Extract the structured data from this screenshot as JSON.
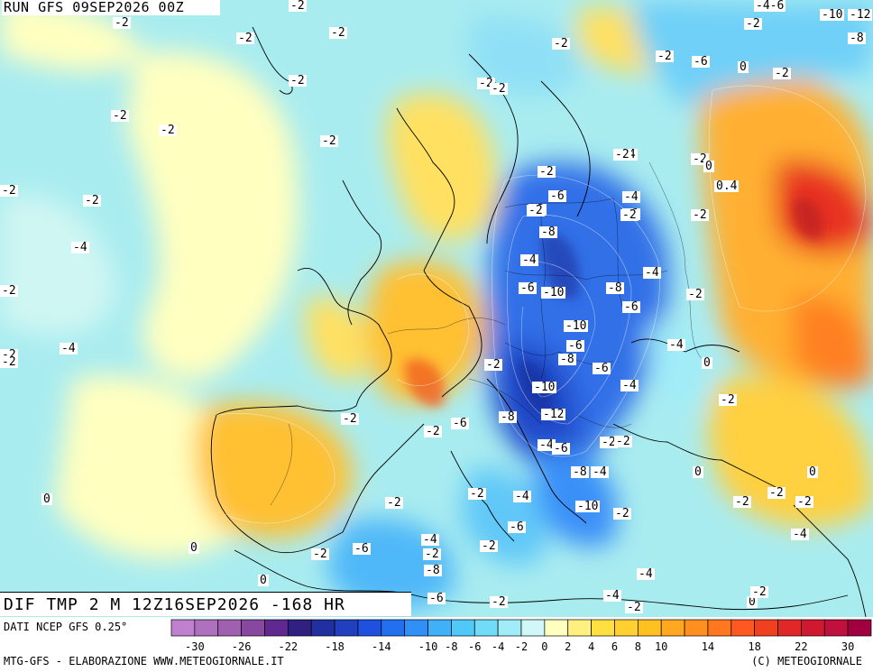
{
  "header": {
    "run": "RUN GFS 09SEP2026 00Z"
  },
  "title": "DIF TMP 2 M 12Z16SEP2026 -168 HR",
  "footer": {
    "data_source": "DATI NCEP GFS 0.25°",
    "credit_left": "MTG-GFS - ELABORAZIONE WWW.METEOGIORNALE.IT",
    "credit_right": "(C) METEOGIORNALE"
  },
  "colorbar": {
    "colors": [
      "#c080d0",
      "#b070c0",
      "#a060b0",
      "#8848a0",
      "#602890",
      "#302080",
      "#2030a0",
      "#2040c0",
      "#2050e0",
      "#2070f0",
      "#3090f8",
      "#40b0f8",
      "#50c8f8",
      "#70dcf8",
      "#a0ecf8",
      "#d0f8f8",
      "#ffffc0",
      "#fff080",
      "#ffe040",
      "#ffd030",
      "#ffc020",
      "#ffa820",
      "#ff9020",
      "#ff7820",
      "#ff5820",
      "#f04020",
      "#e02828",
      "#d01830",
      "#c01040",
      "#a00040"
    ],
    "ticks": [
      "-30",
      "-26",
      "-22",
      "-18",
      "-14",
      "-10",
      "-8",
      "-6",
      "-4",
      "-2",
      "0",
      "2",
      "4",
      "6",
      "8",
      "10",
      "14",
      "18",
      "22",
      "30"
    ]
  },
  "value_labels": [
    {
      "t": "-2"
    },
    {
      "t": "-2"
    },
    {
      "t": "-2"
    },
    {
      "t": "-2"
    },
    {
      "t": "-2"
    },
    {
      "t": "-2"
    },
    {
      "t": "-2"
    },
    {
      "t": "-2"
    },
    {
      "t": "-4"
    },
    {
      "t": "-4"
    },
    {
      "t": "-4-6"
    },
    {
      "t": "-10"
    },
    {
      "t": "-12"
    },
    {
      "t": "-8"
    },
    {
      "t": "-2"
    },
    {
      "t": "-2"
    },
    {
      "t": "-2"
    },
    {
      "t": "-6"
    },
    {
      "t": "0"
    },
    {
      "t": "-2"
    },
    {
      "t": "-2"
    },
    {
      "t": "-2"
    },
    {
      "t": "-2"
    },
    {
      "t": "-2"
    },
    {
      "t": "-2"
    },
    {
      "t": "-2"
    },
    {
      "t": "0"
    },
    {
      "t": "-4"
    },
    {
      "t": "-2"
    },
    {
      "t": "-2"
    },
    {
      "t": "0.4"
    },
    {
      "t": "-2"
    },
    {
      "t": "-6"
    },
    {
      "t": "-2"
    },
    {
      "t": "-4"
    },
    {
      "t": "-6"
    },
    {
      "t": "-2"
    },
    {
      "t": "-2"
    },
    {
      "t": "-8"
    },
    {
      "t": "-2"
    },
    {
      "t": "-2"
    },
    {
      "t": "-4"
    },
    {
      "t": "-6"
    },
    {
      "t": "-10"
    },
    {
      "t": "-8"
    },
    {
      "t": "-4"
    },
    {
      "t": "-2"
    },
    {
      "t": "-6"
    },
    {
      "t": "-10"
    },
    {
      "t": "-2"
    },
    {
      "t": "-6"
    },
    {
      "t": "-4"
    },
    {
      "t": "-8"
    },
    {
      "t": "-6"
    },
    {
      "t": "-2"
    },
    {
      "t": "0"
    },
    {
      "t": "-10"
    },
    {
      "t": "-4"
    },
    {
      "t": "-2"
    },
    {
      "t": "-2"
    },
    {
      "t": "-6"
    },
    {
      "t": "-8"
    },
    {
      "t": "-12"
    },
    {
      "t": "-2"
    },
    {
      "t": "-4"
    },
    {
      "t": "-2"
    },
    {
      "t": "-4"
    },
    {
      "t": "-6"
    },
    {
      "t": "0"
    },
    {
      "t": "-8"
    },
    {
      "t": "-4"
    },
    {
      "t": "0"
    },
    {
      "t": "0"
    },
    {
      "t": "-2"
    },
    {
      "t": "-2"
    },
    {
      "t": "-2"
    },
    {
      "t": "-2"
    },
    {
      "t": "-2"
    },
    {
      "t": "-4"
    },
    {
      "t": "-10"
    },
    {
      "t": "-2"
    },
    {
      "t": "-6"
    },
    {
      "t": "-2"
    },
    {
      "t": "0"
    },
    {
      "t": "-2"
    },
    {
      "t": "-6"
    },
    {
      "t": "-4"
    },
    {
      "t": "-2"
    },
    {
      "t": "-4"
    },
    {
      "t": "0"
    },
    {
      "t": "-8"
    },
    {
      "t": "-4"
    },
    {
      "t": "-2"
    },
    {
      "t": "0"
    },
    {
      "t": "-6"
    },
    {
      "t": "-2"
    },
    {
      "t": "-2"
    }
  ]
}
